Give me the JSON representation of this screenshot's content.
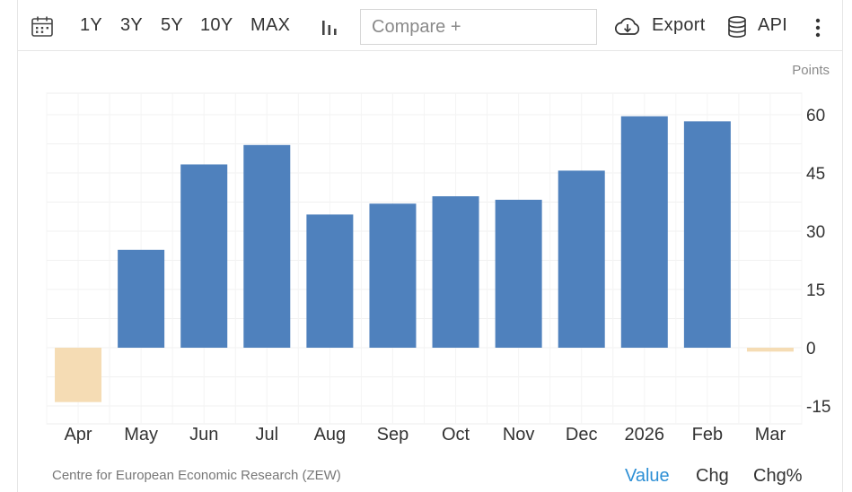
{
  "toolbar": {
    "ranges": [
      "1Y",
      "3Y",
      "5Y",
      "10Y",
      "MAX"
    ],
    "compare_placeholder": "Compare +",
    "export_label": "Export",
    "api_label": "API"
  },
  "units_label": "Points",
  "source": "Centre for European Economic Research (ZEW)",
  "footer_tabs": [
    "Value",
    "Chg",
    "Chg%"
  ],
  "colors": {
    "positive": "#4f81bd",
    "negative": "#f5dcb4",
    "active_tab": "#2d8fd5"
  },
  "chart_data": {
    "type": "bar",
    "categories": [
      "Apr",
      "May",
      "Jun",
      "Jul",
      "Aug",
      "Sep",
      "Oct",
      "Nov",
      "Dec",
      "2026",
      "Feb",
      "Mar"
    ],
    "values": [
      -14,
      25.2,
      47.2,
      52.2,
      34.3,
      37.1,
      39.0,
      38.1,
      45.6,
      59.6,
      58.3,
      -1.0
    ],
    "ylim": [
      -20,
      65
    ],
    "yticks": [
      60,
      45,
      30,
      15,
      0,
      -15
    ],
    "grid": true,
    "title": "",
    "xlabel": "",
    "ylabel": "Points"
  }
}
